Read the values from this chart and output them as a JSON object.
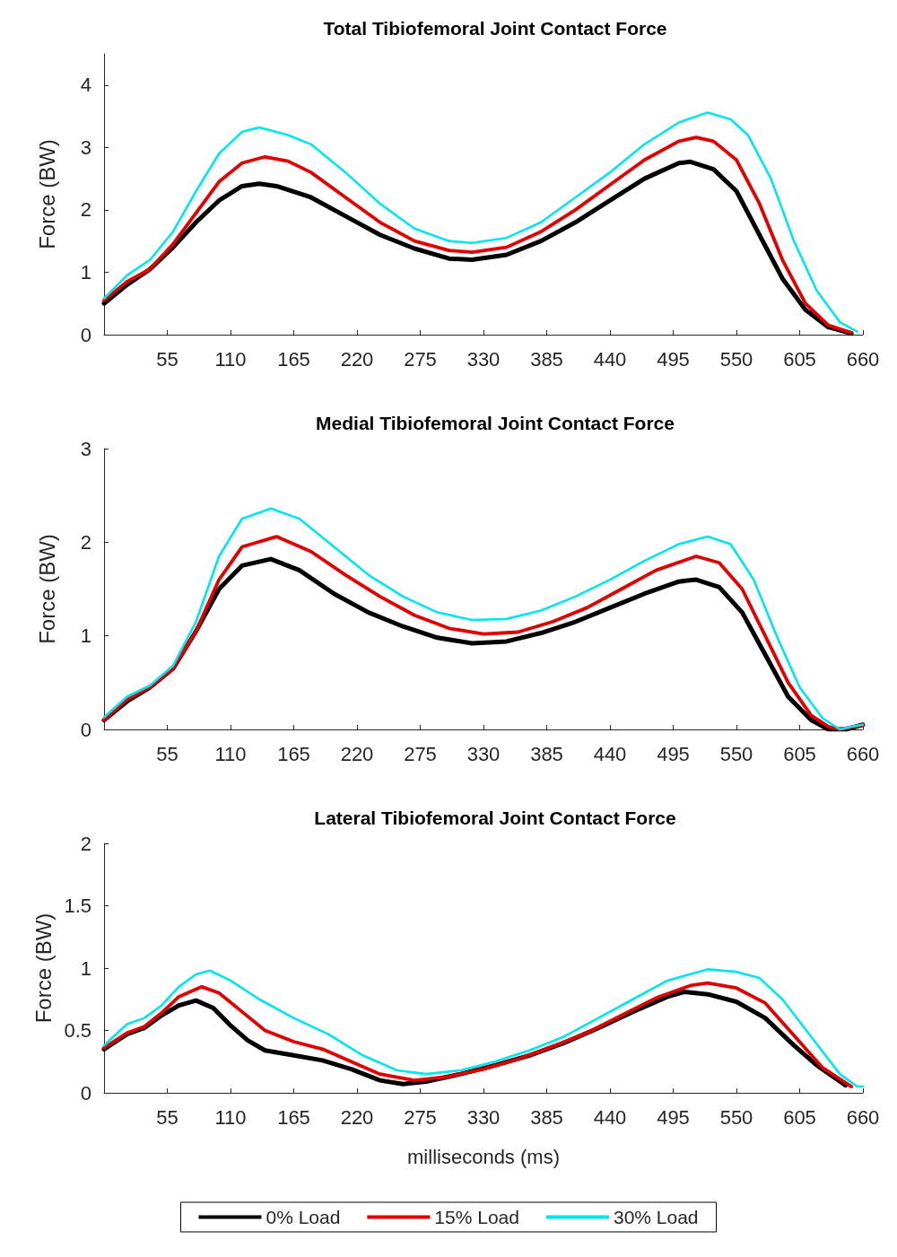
{
  "chart_data": [
    {
      "type": "line",
      "title": "Total Tibiofemoral Joint Contact Force",
      "ylabel": "Force (BW)",
      "xlim": [
        0,
        660
      ],
      "xticks": [
        55,
        110,
        165,
        220,
        275,
        330,
        385,
        440,
        495,
        550,
        605,
        660
      ],
      "ylim": [
        0,
        4.5
      ],
      "yticks": [
        0,
        1,
        2,
        3,
        4
      ],
      "grid": false,
      "legend": false,
      "marker": "none",
      "line_style": "solid",
      "series": [
        {
          "color": "#000000",
          "x": [
            0,
            20,
            40,
            60,
            80,
            100,
            120,
            135,
            150,
            180,
            210,
            240,
            270,
            300,
            320,
            350,
            380,
            410,
            440,
            470,
            500,
            510,
            530,
            550,
            570,
            590,
            610,
            630,
            650
          ],
          "values": [
            0.5,
            0.8,
            1.05,
            1.4,
            1.8,
            2.15,
            2.38,
            2.42,
            2.38,
            2.2,
            1.9,
            1.6,
            1.38,
            1.22,
            1.2,
            1.28,
            1.5,
            1.8,
            2.15,
            2.5,
            2.75,
            2.77,
            2.65,
            2.3,
            1.6,
            0.9,
            0.4,
            0.12,
            0.02
          ]
        },
        {
          "color": "#e00000",
          "x": [
            0,
            20,
            40,
            60,
            80,
            100,
            120,
            140,
            160,
            180,
            210,
            240,
            270,
            300,
            320,
            350,
            380,
            410,
            440,
            470,
            500,
            515,
            530,
            550,
            570,
            590,
            610,
            630,
            650
          ],
          "values": [
            0.55,
            0.85,
            1.05,
            1.45,
            1.95,
            2.45,
            2.75,
            2.85,
            2.78,
            2.6,
            2.2,
            1.8,
            1.5,
            1.35,
            1.32,
            1.4,
            1.65,
            2.0,
            2.4,
            2.8,
            3.1,
            3.16,
            3.1,
            2.8,
            2.1,
            1.2,
            0.5,
            0.15,
            0.03
          ]
        },
        {
          "color": "#00e5ee",
          "x": [
            0,
            20,
            40,
            60,
            80,
            100,
            120,
            135,
            160,
            180,
            210,
            240,
            270,
            300,
            320,
            350,
            380,
            410,
            440,
            470,
            500,
            525,
            545,
            560,
            580,
            600,
            620,
            640,
            655
          ],
          "values": [
            0.58,
            0.95,
            1.2,
            1.65,
            2.3,
            2.9,
            3.25,
            3.32,
            3.2,
            3.05,
            2.6,
            2.1,
            1.7,
            1.5,
            1.47,
            1.55,
            1.8,
            2.2,
            2.6,
            3.05,
            3.4,
            3.56,
            3.45,
            3.2,
            2.5,
            1.5,
            0.7,
            0.2,
            0.05
          ]
        }
      ]
    },
    {
      "type": "line",
      "title": "Medial Tibiofemoral Joint Contact Force",
      "ylabel": "Force (BW)",
      "xlim": [
        0,
        660
      ],
      "xticks": [
        55,
        110,
        165,
        220,
        275,
        330,
        385,
        440,
        495,
        550,
        605,
        660
      ],
      "ylim": [
        0,
        3
      ],
      "yticks": [
        0,
        1,
        2,
        3
      ],
      "grid": false,
      "legend": false,
      "marker": "none",
      "line_style": "solid",
      "series": [
        {
          "color": "#000000",
          "x": [
            0,
            20,
            40,
            60,
            80,
            100,
            120,
            145,
            170,
            200,
            230,
            260,
            290,
            320,
            350,
            380,
            410,
            440,
            470,
            500,
            515,
            535,
            555,
            575,
            595,
            615,
            630,
            645,
            660
          ],
          "values": [
            0.1,
            0.3,
            0.45,
            0.65,
            1.05,
            1.5,
            1.75,
            1.82,
            1.7,
            1.45,
            1.25,
            1.1,
            0.98,
            0.92,
            0.94,
            1.03,
            1.15,
            1.3,
            1.45,
            1.58,
            1.6,
            1.52,
            1.25,
            0.8,
            0.35,
            0.1,
            0.0,
            0.0,
            0.05
          ]
        },
        {
          "color": "#e00000",
          "x": [
            0,
            20,
            40,
            60,
            80,
            100,
            120,
            150,
            180,
            210,
            240,
            270,
            300,
            330,
            360,
            390,
            420,
            450,
            480,
            515,
            535,
            555,
            575,
            595,
            615,
            630,
            640,
            660
          ],
          "values": [
            0.1,
            0.32,
            0.45,
            0.65,
            1.05,
            1.6,
            1.95,
            2.06,
            1.9,
            1.65,
            1.42,
            1.22,
            1.08,
            1.02,
            1.04,
            1.15,
            1.3,
            1.5,
            1.7,
            1.85,
            1.78,
            1.5,
            1.0,
            0.5,
            0.15,
            0.03,
            0.0,
            0.05
          ]
        },
        {
          "color": "#00e5ee",
          "x": [
            0,
            20,
            40,
            60,
            80,
            100,
            120,
            145,
            170,
            200,
            230,
            260,
            290,
            320,
            350,
            380,
            410,
            440,
            470,
            500,
            525,
            545,
            565,
            585,
            605,
            625,
            640,
            650,
            660
          ],
          "values": [
            0.13,
            0.35,
            0.47,
            0.68,
            1.15,
            1.85,
            2.25,
            2.36,
            2.25,
            1.95,
            1.65,
            1.42,
            1.25,
            1.17,
            1.18,
            1.27,
            1.42,
            1.6,
            1.8,
            1.98,
            2.06,
            1.98,
            1.6,
            1.0,
            0.45,
            0.12,
            0.0,
            0.03,
            0.05
          ]
        }
      ]
    },
    {
      "type": "line",
      "title": "Lateral Tibiofemoral Joint Contact Force",
      "xlabel": "milliseconds (ms)",
      "ylabel": "Force (BW)",
      "xlim": [
        0,
        660
      ],
      "xticks": [
        55,
        110,
        165,
        220,
        275,
        330,
        385,
        440,
        495,
        550,
        605,
        660
      ],
      "ylim": [
        0,
        2
      ],
      "yticks": [
        0,
        0.5,
        1,
        1.5,
        2
      ],
      "grid": false,
      "legend": "bottom",
      "marker": "none",
      "line_style": "solid",
      "series": [
        {
          "name": "0% Load",
          "color": "#000000",
          "x": [
            0,
            20,
            35,
            50,
            65,
            80,
            95,
            110,
            125,
            140,
            165,
            190,
            215,
            240,
            260,
            280,
            310,
            340,
            370,
            400,
            430,
            460,
            490,
            505,
            525,
            550,
            575,
            600,
            620,
            645
          ],
          "values": [
            0.35,
            0.47,
            0.52,
            0.62,
            0.7,
            0.74,
            0.68,
            0.54,
            0.42,
            0.34,
            0.3,
            0.26,
            0.19,
            0.1,
            0.07,
            0.09,
            0.15,
            0.22,
            0.3,
            0.4,
            0.52,
            0.65,
            0.77,
            0.81,
            0.79,
            0.73,
            0.6,
            0.38,
            0.22,
            0.06
          ]
        },
        {
          "name": "15% Load",
          "color": "#e00000",
          "x": [
            0,
            20,
            35,
            50,
            65,
            85,
            100,
            120,
            140,
            165,
            190,
            215,
            240,
            270,
            300,
            330,
            360,
            390,
            420,
            450,
            480,
            510,
            525,
            550,
            575,
            600,
            625,
            650
          ],
          "values": [
            0.36,
            0.48,
            0.53,
            0.64,
            0.77,
            0.85,
            0.8,
            0.65,
            0.5,
            0.41,
            0.35,
            0.25,
            0.15,
            0.1,
            0.13,
            0.19,
            0.27,
            0.37,
            0.48,
            0.62,
            0.76,
            0.86,
            0.88,
            0.84,
            0.72,
            0.46,
            0.2,
            0.05
          ]
        },
        {
          "name": "30% Load",
          "color": "#00e5ee",
          "x": [
            0,
            20,
            35,
            50,
            65,
            80,
            92,
            110,
            135,
            165,
            195,
            225,
            255,
            280,
            310,
            340,
            370,
            400,
            430,
            460,
            490,
            525,
            550,
            570,
            590,
            615,
            640,
            655,
            660
          ],
          "values": [
            0.38,
            0.55,
            0.6,
            0.7,
            0.85,
            0.95,
            0.98,
            0.9,
            0.75,
            0.6,
            0.47,
            0.3,
            0.18,
            0.15,
            0.18,
            0.25,
            0.34,
            0.45,
            0.6,
            0.75,
            0.9,
            0.99,
            0.97,
            0.92,
            0.75,
            0.45,
            0.15,
            0.05,
            0.05
          ]
        }
      ]
    }
  ]
}
